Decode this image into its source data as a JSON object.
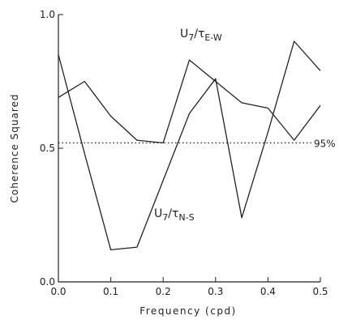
{
  "chart_data": {
    "type": "line",
    "xlabel": "Frequency  (cpd)",
    "ylabel": "Coherence  Squared",
    "x": [
      0,
      0.05,
      0.1,
      0.15,
      0.2,
      0.25,
      0.3,
      0.35,
      0.4,
      0.45,
      0.5
    ],
    "series": [
      {
        "label": [
          "U",
          "7",
          "/τ",
          "E-W"
        ],
        "color": "#222222",
        "values": [
          0.69,
          0.75,
          0.62,
          0.53,
          0.52,
          0.83,
          0.75,
          0.67,
          0.65,
          0.53,
          0.66
        ]
      },
      {
        "label": [
          "U",
          "7",
          "/τ",
          "N-S"
        ],
        "color": "#222222",
        "values": [
          0.85,
          0.48,
          0.12,
          0.13,
          0.38,
          0.63,
          0.76,
          0.24,
          0.56,
          0.9,
          0.79
        ]
      }
    ],
    "threshold": {
      "value": 0.52,
      "label": "95%"
    },
    "xlim": [
      0,
      0.5
    ],
    "ylim": [
      0,
      1
    ],
    "xticks": [
      {
        "value": 0,
        "label": "0.0"
      },
      0.1,
      0.2,
      0.3,
      0.4,
      0.5
    ],
    "yticks": [
      {
        "value": 0,
        "label": "0.0"
      },
      0.5,
      {
        "value": 1,
        "label": "1.0"
      }
    ]
  }
}
